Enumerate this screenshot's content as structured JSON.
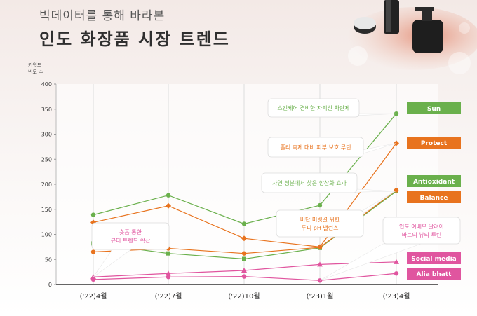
{
  "header": {
    "subtitle": "빅데이터를 통해 바라본",
    "title": "인도 화장품 시장 트렌드"
  },
  "chart_data": {
    "type": "line",
    "ylabel": [
      "키워드",
      "빈도 수"
    ],
    "ylim": [
      0,
      400
    ],
    "yticks": [
      0,
      50,
      100,
      150,
      200,
      250,
      300,
      350,
      400
    ],
    "categories": [
      "('22)4월",
      "('22)7월",
      "('22)10월",
      "('23)1월",
      "('23)4월"
    ],
    "grid": "vertical",
    "legend": "right",
    "series": [
      {
        "name": "Sun",
        "color": "#6ab04c",
        "marker": "circle",
        "values": [
          139,
          178,
          121,
          158,
          341
        ]
      },
      {
        "name": "Protect",
        "color": "#e8731e",
        "marker": "diamond",
        "values": [
          124,
          157,
          92,
          75,
          282
        ]
      },
      {
        "name": "Antioxidant",
        "color": "#6ab04c",
        "marker": "square",
        "values": [
          82,
          62,
          51,
          73,
          186
        ]
      },
      {
        "name": "Balance",
        "color": "#e8731e",
        "marker": "circle",
        "values": [
          65,
          72,
          62,
          74,
          188
        ]
      },
      {
        "name": "Social media",
        "color": "#e0559f",
        "marker": "triangle",
        "values": [
          15,
          22,
          28,
          40,
          45
        ]
      },
      {
        "name": "Alia bhatt",
        "color": "#e0559f",
        "marker": "circle",
        "values": [
          10,
          15,
          16,
          8,
          22
        ]
      }
    ],
    "annotations": [
      {
        "text": [
          "스킨케어 겸비한 자외선 차단제"
        ],
        "series": "Sun",
        "point": 4
      },
      {
        "text": [
          "홀리 축제 대비 피부 보호 루틴"
        ],
        "series": "Protect",
        "point": 4
      },
      {
        "text": [
          "자연 성분에서 찾은 항산화 효과"
        ],
        "series": "Antioxidant",
        "point": 4
      },
      {
        "text": [
          "비단 머릿결 위한",
          "두피 pH 밸런스"
        ],
        "series": "Balance",
        "point": 4
      },
      {
        "text": [
          "인도 여배우 알려아",
          "바트의 뷰티 루틴"
        ],
        "series": "Alia bhatt",
        "point": 3
      },
      {
        "text": [
          "숏폼 통한",
          "뷰티 트렌드 확산"
        ],
        "series": "Social media",
        "point": 0
      }
    ]
  }
}
